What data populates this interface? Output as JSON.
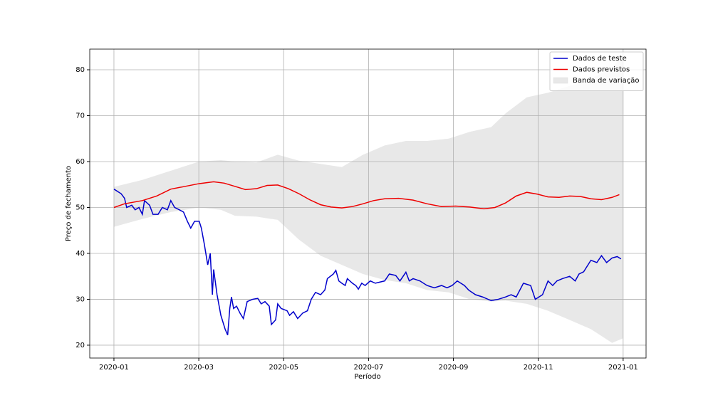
{
  "chart_data": {
    "type": "line",
    "xlabel": "Período",
    "ylabel": "Preço de fechamento",
    "xlim": [
      -0.57,
      12.54
    ],
    "ylim": [
      17.2,
      84.5
    ],
    "xticks": [
      {
        "value": 0,
        "label": "2020-01"
      },
      {
        "value": 2,
        "label": "2020-03"
      },
      {
        "value": 4,
        "label": "2020-05"
      },
      {
        "value": 6,
        "label": "2020-07"
      },
      {
        "value": 8,
        "label": "2020-09"
      },
      {
        "value": 10,
        "label": "2020-11"
      },
      {
        "value": 12,
        "label": "2021-01"
      }
    ],
    "yticks": [
      20,
      30,
      40,
      50,
      60,
      70,
      80
    ],
    "grid": true,
    "legend": "upper right",
    "series": [
      {
        "name": "Dados de teste",
        "color": "#0000cc",
        "x": [
          0,
          0.17,
          0.25,
          0.3,
          0.42,
          0.5,
          0.59,
          0.67,
          0.72,
          0.84,
          0.92,
          1.04,
          1.14,
          1.26,
          1.34,
          1.43,
          1.54,
          1.64,
          1.73,
          1.81,
          1.9,
          2.01,
          2.06,
          2.13,
          2.21,
          2.27,
          2.32,
          2.35,
          2.43,
          2.52,
          2.62,
          2.68,
          2.73,
          2.77,
          2.82,
          2.89,
          2.97,
          3.05,
          3.14,
          3.27,
          3.39,
          3.47,
          3.56,
          3.66,
          3.71,
          3.81,
          3.86,
          3.94,
          4.08,
          4.14,
          4.23,
          4.33,
          4.45,
          4.56,
          4.65,
          4.75,
          4.87,
          4.97,
          5.03,
          5.17,
          5.23,
          5.3,
          5.37,
          5.45,
          5.5,
          5.62,
          5.7,
          5.76,
          5.84,
          5.92,
          6.04,
          6.16,
          6.38,
          6.49,
          6.64,
          6.74,
          6.88,
          6.96,
          7.05,
          7.21,
          7.38,
          7.55,
          7.72,
          7.85,
          7.97,
          8.09,
          8.26,
          8.36,
          8.52,
          8.69,
          8.89,
          9.06,
          9.23,
          9.36,
          9.48,
          9.65,
          9.82,
          9.93,
          10.1,
          10.23,
          10.34,
          10.44,
          10.57,
          10.74,
          10.87,
          10.96,
          11.07,
          11.24,
          11.38,
          11.49,
          11.61,
          11.74,
          11.86,
          11.95
        ],
        "values": [
          54,
          53,
          52,
          50,
          50.5,
          49.5,
          50,
          48.5,
          51.5,
          50.5,
          48.5,
          48.5,
          50,
          49.5,
          51.5,
          50,
          49.5,
          49,
          47,
          45.5,
          47,
          47,
          45.5,
          42,
          37.5,
          40,
          31,
          36.5,
          31,
          26.5,
          23.5,
          22.2,
          28,
          30.5,
          28,
          28.5,
          27,
          25.8,
          29.5,
          30,
          30.2,
          29,
          29.5,
          28.5,
          24.5,
          25.5,
          29,
          28,
          27.5,
          26.5,
          27.3,
          25.8,
          27,
          27.5,
          30,
          31.5,
          31,
          32,
          34.5,
          35.5,
          36.3,
          34,
          33.5,
          33,
          34.5,
          33.5,
          33,
          32.2,
          33.5,
          33,
          34,
          33.5,
          34,
          35.5,
          35.2,
          34,
          35.9,
          34,
          34.5,
          34,
          33,
          32.5,
          33,
          32.5,
          33,
          34,
          33,
          32,
          31,
          30.5,
          29.7,
          30,
          30.5,
          31,
          30.5,
          33.5,
          33,
          30,
          31,
          34,
          33,
          34,
          34.5,
          35,
          34,
          35.5,
          36,
          38.5,
          38,
          39.5,
          38,
          39,
          39.3,
          38.8
        ]
      },
      {
        "name": "Dados previstos",
        "color": "#ee0000",
        "x": [
          0,
          0.25,
          0.67,
          1.01,
          1.34,
          1.68,
          2.01,
          2.35,
          2.6,
          2.85,
          3.1,
          3.36,
          3.61,
          3.86,
          4.11,
          4.36,
          4.61,
          4.87,
          5.12,
          5.37,
          5.62,
          5.87,
          6.12,
          6.38,
          6.71,
          7.05,
          7.38,
          7.72,
          8.05,
          8.39,
          8.72,
          8.98,
          9.23,
          9.48,
          9.73,
          9.98,
          10.23,
          10.49,
          10.74,
          10.99,
          11.24,
          11.49,
          11.74,
          11.91
        ],
        "values": [
          50,
          50.8,
          51.5,
          52.5,
          54,
          54.6,
          55.2,
          55.6,
          55.3,
          54.6,
          53.9,
          54.1,
          54.8,
          54.9,
          54.1,
          53,
          51.7,
          50.6,
          50.1,
          49.9,
          50.2,
          50.8,
          51.5,
          51.9,
          52,
          51.6,
          50.8,
          50.2,
          50.3,
          50.1,
          49.7,
          50,
          51,
          52.5,
          53.3,
          52.9,
          52.3,
          52.2,
          52.5,
          52.4,
          51.9,
          51.7,
          52.2,
          52.8
        ]
      }
    ],
    "band": {
      "name": "Banda de variação",
      "color": "#e8e8e8",
      "x": [
        0,
        0.67,
        1.34,
        2.01,
        2.52,
        2.85,
        3.36,
        3.86,
        4.36,
        4.87,
        5.37,
        5.87,
        6.38,
        6.88,
        7.38,
        7.89,
        8.39,
        8.89,
        9.23,
        9.73,
        10.23,
        10.74,
        11.24,
        11.74,
        12.0
      ],
      "upper": [
        54.5,
        56,
        58,
        60,
        60.3,
        60,
        59.8,
        61.5,
        60.2,
        59.5,
        58.8,
        61.5,
        63.5,
        64.5,
        64.5,
        65,
        66.5,
        67.5,
        70.5,
        74,
        75,
        76.5,
        78,
        80.5,
        83
      ],
      "lower": [
        45.8,
        47.5,
        49,
        50,
        49.5,
        48.2,
        48,
        47.3,
        43,
        39.5,
        37.5,
        35.5,
        34.2,
        33.5,
        32,
        31.5,
        30,
        29.5,
        29.7,
        29,
        27.5,
        25.5,
        23.5,
        20.5,
        21.5
      ]
    }
  }
}
